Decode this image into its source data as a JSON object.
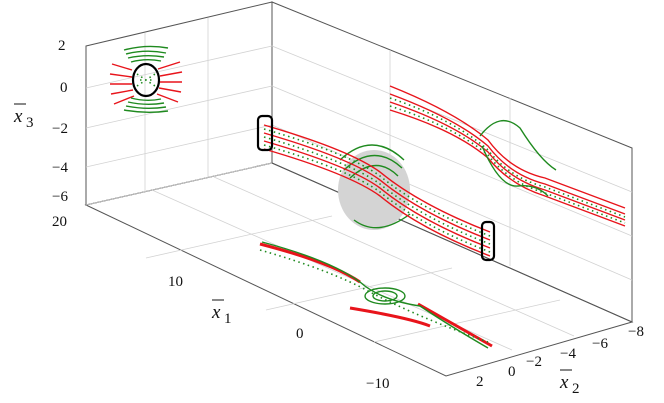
{
  "chart_data": {
    "type": "3d-trajectory",
    "title": "",
    "axes": {
      "x1": {
        "label_main": "x",
        "label_sub": "1",
        "ticks": [
          "20",
          "10",
          "0",
          "−10"
        ],
        "range": [
          -10,
          20
        ]
      },
      "x2": {
        "label_main": "x",
        "label_sub": "2",
        "ticks": [
          "−8",
          "−6",
          "−4",
          "−2",
          "0",
          "2"
        ],
        "range": [
          -8,
          2
        ]
      },
      "x3": {
        "label_main": "x",
        "label_sub": "3",
        "ticks": [
          "2",
          "0",
          "−2",
          "−4",
          "−6"
        ],
        "range": [
          -6,
          2
        ]
      }
    },
    "series": [
      {
        "color": "#e8141b",
        "style": "solid"
      },
      {
        "color": "#1f8a1f",
        "style": "solid/dotted"
      },
      {
        "color": "#000000",
        "style": "boundary"
      }
    ],
    "grid": true,
    "legend": "none"
  }
}
